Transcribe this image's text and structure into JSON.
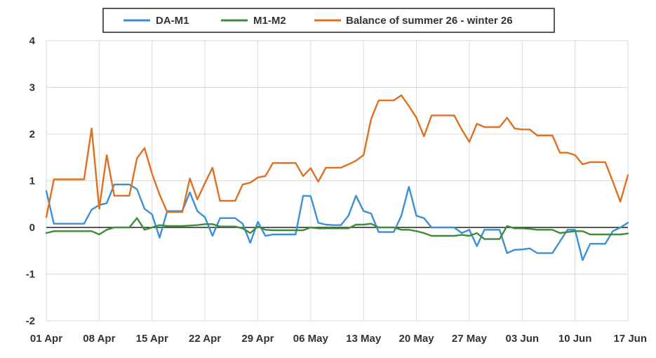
{
  "chart_data": {
    "type": "line",
    "title": "",
    "xlabel": "",
    "ylabel": "",
    "ylim": [
      -2,
      4
    ],
    "yticks": [
      "-2",
      "-1",
      "0",
      "1",
      "2",
      "3",
      "4"
    ],
    "xticks": [
      "01 Apr",
      "08 Apr",
      "15 Apr",
      "22 Apr",
      "29 Apr",
      "06 May",
      "13 May",
      "20 May",
      "27 May",
      "03 Jun",
      "10 Jun",
      "17 Jun"
    ],
    "x_start": "2025-04-01",
    "x_end": "2025-06-17",
    "grid": true,
    "zero_line": true,
    "legend_position": "top-center",
    "series": [
      {
        "name": "DA-M1",
        "color": "#3b8fd9",
        "points": [
          [
            "2025-04-01",
            0.78
          ],
          [
            "2025-04-02",
            0.08
          ],
          [
            "2025-04-03",
            0.08
          ],
          [
            "2025-04-04",
            0.08
          ],
          [
            "2025-04-05",
            0.08
          ],
          [
            "2025-04-06",
            0.08
          ],
          [
            "2025-04-07",
            0.38
          ],
          [
            "2025-04-08",
            0.48
          ],
          [
            "2025-04-09",
            0.52
          ],
          [
            "2025-04-10",
            0.92
          ],
          [
            "2025-04-11",
            0.92
          ],
          [
            "2025-04-12",
            0.92
          ],
          [
            "2025-04-13",
            0.82
          ],
          [
            "2025-04-14",
            0.4
          ],
          [
            "2025-04-15",
            0.28
          ],
          [
            "2025-04-16",
            -0.22
          ],
          [
            "2025-04-17",
            0.35
          ],
          [
            "2025-04-18",
            0.35
          ],
          [
            "2025-04-19",
            0.35
          ],
          [
            "2025-04-20",
            0.75
          ],
          [
            "2025-04-21",
            0.35
          ],
          [
            "2025-04-22",
            0.22
          ],
          [
            "2025-04-23",
            -0.18
          ],
          [
            "2025-04-24",
            0.2
          ],
          [
            "2025-04-25",
            0.2
          ],
          [
            "2025-04-26",
            0.2
          ],
          [
            "2025-04-27",
            0.08
          ],
          [
            "2025-04-28",
            -0.33
          ],
          [
            "2025-04-29",
            0.12
          ],
          [
            "2025-04-30",
            -0.18
          ],
          [
            "2025-05-01",
            -0.15
          ],
          [
            "2025-05-02",
            -0.15
          ],
          [
            "2025-05-03",
            -0.15
          ],
          [
            "2025-05-04",
            -0.15
          ],
          [
            "2025-05-05",
            0.68
          ],
          [
            "2025-05-06",
            0.67
          ],
          [
            "2025-05-07",
            0.1
          ],
          [
            "2025-05-08",
            0.06
          ],
          [
            "2025-05-09",
            0.05
          ],
          [
            "2025-05-10",
            0.05
          ],
          [
            "2025-05-11",
            0.25
          ],
          [
            "2025-05-12",
            0.68
          ],
          [
            "2025-05-13",
            0.35
          ],
          [
            "2025-05-14",
            0.3
          ],
          [
            "2025-05-15",
            -0.1
          ],
          [
            "2025-05-16",
            -0.1
          ],
          [
            "2025-05-17",
            -0.1
          ],
          [
            "2025-05-18",
            0.25
          ],
          [
            "2025-05-19",
            0.87
          ],
          [
            "2025-05-20",
            0.25
          ],
          [
            "2025-05-21",
            0.2
          ],
          [
            "2025-05-22",
            0.0
          ],
          [
            "2025-05-23",
            0.0
          ],
          [
            "2025-05-24",
            0.0
          ],
          [
            "2025-05-25",
            0.0
          ],
          [
            "2025-05-26",
            -0.12
          ],
          [
            "2025-05-27",
            -0.05
          ],
          [
            "2025-05-28",
            -0.4
          ],
          [
            "2025-05-29",
            -0.05
          ],
          [
            "2025-05-30",
            -0.05
          ],
          [
            "2025-05-31",
            -0.05
          ],
          [
            "2025-06-01",
            -0.55
          ],
          [
            "2025-06-02",
            -0.48
          ],
          [
            "2025-06-03",
            -0.47
          ],
          [
            "2025-06-04",
            -0.45
          ],
          [
            "2025-06-05",
            -0.55
          ],
          [
            "2025-06-06",
            -0.55
          ],
          [
            "2025-06-07",
            -0.55
          ],
          [
            "2025-06-08",
            -0.3
          ],
          [
            "2025-06-09",
            -0.05
          ],
          [
            "2025-06-10",
            -0.05
          ],
          [
            "2025-06-11",
            -0.7
          ],
          [
            "2025-06-12",
            -0.35
          ],
          [
            "2025-06-13",
            -0.35
          ],
          [
            "2025-06-14",
            -0.35
          ],
          [
            "2025-06-15",
            -0.08
          ],
          [
            "2025-06-16",
            0.0
          ],
          [
            "2025-06-17",
            0.1
          ]
        ]
      },
      {
        "name": "M1-M2",
        "color": "#3f8a3b",
        "points": [
          [
            "2025-04-01",
            -0.12
          ],
          [
            "2025-04-02",
            -0.08
          ],
          [
            "2025-04-03",
            -0.08
          ],
          [
            "2025-04-04",
            -0.08
          ],
          [
            "2025-04-05",
            -0.08
          ],
          [
            "2025-04-06",
            -0.08
          ],
          [
            "2025-04-07",
            -0.08
          ],
          [
            "2025-04-08",
            -0.15
          ],
          [
            "2025-04-09",
            -0.05
          ],
          [
            "2025-04-10",
            0.0
          ],
          [
            "2025-04-11",
            0.0
          ],
          [
            "2025-04-12",
            0.0
          ],
          [
            "2025-04-13",
            0.2
          ],
          [
            "2025-04-14",
            -0.05
          ],
          [
            "2025-04-15",
            0.0
          ],
          [
            "2025-04-16",
            0.05
          ],
          [
            "2025-04-17",
            0.03
          ],
          [
            "2025-04-18",
            0.03
          ],
          [
            "2025-04-19",
            0.03
          ],
          [
            "2025-04-20",
            0.04
          ],
          [
            "2025-04-21",
            0.05
          ],
          [
            "2025-04-22",
            0.07
          ],
          [
            "2025-04-23",
            0.07
          ],
          [
            "2025-04-24",
            0.02
          ],
          [
            "2025-04-25",
            0.02
          ],
          [
            "2025-04-26",
            0.02
          ],
          [
            "2025-04-27",
            -0.02
          ],
          [
            "2025-04-28",
            -0.12
          ],
          [
            "2025-04-29",
            0.02
          ],
          [
            "2025-04-30",
            -0.05
          ],
          [
            "2025-05-01",
            -0.06
          ],
          [
            "2025-05-02",
            -0.06
          ],
          [
            "2025-05-03",
            -0.06
          ],
          [
            "2025-05-04",
            -0.06
          ],
          [
            "2025-05-05",
            -0.06
          ],
          [
            "2025-05-06",
            0.0
          ],
          [
            "2025-05-07",
            -0.02
          ],
          [
            "2025-05-08",
            -0.02
          ],
          [
            "2025-05-09",
            -0.02
          ],
          [
            "2025-05-10",
            -0.02
          ],
          [
            "2025-05-11",
            -0.02
          ],
          [
            "2025-05-12",
            0.06
          ],
          [
            "2025-05-13",
            0.06
          ],
          [
            "2025-05-14",
            0.08
          ],
          [
            "2025-05-15",
            0.0
          ],
          [
            "2025-05-16",
            0.0
          ],
          [
            "2025-05-17",
            0.0
          ],
          [
            "2025-05-18",
            -0.05
          ],
          [
            "2025-05-19",
            -0.05
          ],
          [
            "2025-05-20",
            -0.08
          ],
          [
            "2025-05-21",
            -0.12
          ],
          [
            "2025-05-22",
            -0.18
          ],
          [
            "2025-05-23",
            -0.18
          ],
          [
            "2025-05-24",
            -0.18
          ],
          [
            "2025-05-25",
            -0.18
          ],
          [
            "2025-05-26",
            -0.16
          ],
          [
            "2025-05-27",
            -0.18
          ],
          [
            "2025-05-28",
            -0.12
          ],
          [
            "2025-05-29",
            -0.25
          ],
          [
            "2025-05-30",
            -0.25
          ],
          [
            "2025-05-31",
            -0.25
          ],
          [
            "2025-06-01",
            0.03
          ],
          [
            "2025-06-02",
            -0.02
          ],
          [
            "2025-06-03",
            -0.02
          ],
          [
            "2025-06-04",
            -0.03
          ],
          [
            "2025-06-05",
            -0.05
          ],
          [
            "2025-06-06",
            -0.05
          ],
          [
            "2025-06-07",
            -0.05
          ],
          [
            "2025-06-08",
            -0.12
          ],
          [
            "2025-06-09",
            -0.1
          ],
          [
            "2025-06-10",
            -0.08
          ],
          [
            "2025-06-11",
            -0.08
          ],
          [
            "2025-06-12",
            -0.15
          ],
          [
            "2025-06-13",
            -0.15
          ],
          [
            "2025-06-14",
            -0.15
          ],
          [
            "2025-06-15",
            -0.15
          ],
          [
            "2025-06-16",
            -0.15
          ],
          [
            "2025-06-17",
            -0.13
          ]
        ]
      },
      {
        "name": "Balance of summer 26 - winter 26",
        "color": "#e07020",
        "points": [
          [
            "2025-04-01",
            0.22
          ],
          [
            "2025-04-02",
            1.03
          ],
          [
            "2025-04-03",
            1.03
          ],
          [
            "2025-04-04",
            1.03
          ],
          [
            "2025-04-05",
            1.03
          ],
          [
            "2025-04-06",
            1.03
          ],
          [
            "2025-04-07",
            2.12
          ],
          [
            "2025-04-08",
            0.4
          ],
          [
            "2025-04-09",
            1.55
          ],
          [
            "2025-04-10",
            0.68
          ],
          [
            "2025-04-11",
            0.68
          ],
          [
            "2025-04-12",
            0.68
          ],
          [
            "2025-04-13",
            1.48
          ],
          [
            "2025-04-14",
            1.7
          ],
          [
            "2025-04-15",
            1.15
          ],
          [
            "2025-04-16",
            0.7
          ],
          [
            "2025-04-17",
            0.33
          ],
          [
            "2025-04-18",
            0.33
          ],
          [
            "2025-04-19",
            0.33
          ],
          [
            "2025-04-20",
            1.05
          ],
          [
            "2025-04-21",
            0.6
          ],
          [
            "2025-04-22",
            0.95
          ],
          [
            "2025-04-23",
            1.28
          ],
          [
            "2025-04-24",
            0.57
          ],
          [
            "2025-04-25",
            0.57
          ],
          [
            "2025-04-26",
            0.57
          ],
          [
            "2025-04-27",
            0.92
          ],
          [
            "2025-04-28",
            0.96
          ],
          [
            "2025-04-29",
            1.07
          ],
          [
            "2025-04-30",
            1.1
          ],
          [
            "2025-05-01",
            1.38
          ],
          [
            "2025-05-02",
            1.38
          ],
          [
            "2025-05-03",
            1.38
          ],
          [
            "2025-05-04",
            1.38
          ],
          [
            "2025-05-05",
            1.1
          ],
          [
            "2025-05-06",
            1.27
          ],
          [
            "2025-05-07",
            0.98
          ],
          [
            "2025-05-08",
            1.28
          ],
          [
            "2025-05-09",
            1.28
          ],
          [
            "2025-05-10",
            1.28
          ],
          [
            "2025-05-11",
            1.35
          ],
          [
            "2025-05-12",
            1.43
          ],
          [
            "2025-05-13",
            1.55
          ],
          [
            "2025-05-14",
            2.32
          ],
          [
            "2025-05-15",
            2.72
          ],
          [
            "2025-05-16",
            2.72
          ],
          [
            "2025-05-17",
            2.72
          ],
          [
            "2025-05-18",
            2.83
          ],
          [
            "2025-05-19",
            2.6
          ],
          [
            "2025-05-20",
            2.35
          ],
          [
            "2025-05-21",
            1.95
          ],
          [
            "2025-05-22",
            2.4
          ],
          [
            "2025-05-23",
            2.4
          ],
          [
            "2025-05-24",
            2.4
          ],
          [
            "2025-05-25",
            2.4
          ],
          [
            "2025-05-26",
            2.1
          ],
          [
            "2025-05-27",
            1.83
          ],
          [
            "2025-05-28",
            2.22
          ],
          [
            "2025-05-29",
            2.15
          ],
          [
            "2025-05-30",
            2.15
          ],
          [
            "2025-05-31",
            2.15
          ],
          [
            "2025-06-01",
            2.35
          ],
          [
            "2025-06-02",
            2.12
          ],
          [
            "2025-06-03",
            2.1
          ],
          [
            "2025-06-04",
            2.1
          ],
          [
            "2025-06-05",
            1.97
          ],
          [
            "2025-06-06",
            1.97
          ],
          [
            "2025-06-07",
            1.97
          ],
          [
            "2025-06-08",
            1.6
          ],
          [
            "2025-06-09",
            1.6
          ],
          [
            "2025-06-10",
            1.55
          ],
          [
            "2025-06-11",
            1.35
          ],
          [
            "2025-06-12",
            1.4
          ],
          [
            "2025-06-13",
            1.4
          ],
          [
            "2025-06-14",
            1.4
          ],
          [
            "2025-06-15",
            0.98
          ],
          [
            "2025-06-16",
            0.55
          ],
          [
            "2025-06-17",
            1.12
          ]
        ]
      }
    ]
  }
}
